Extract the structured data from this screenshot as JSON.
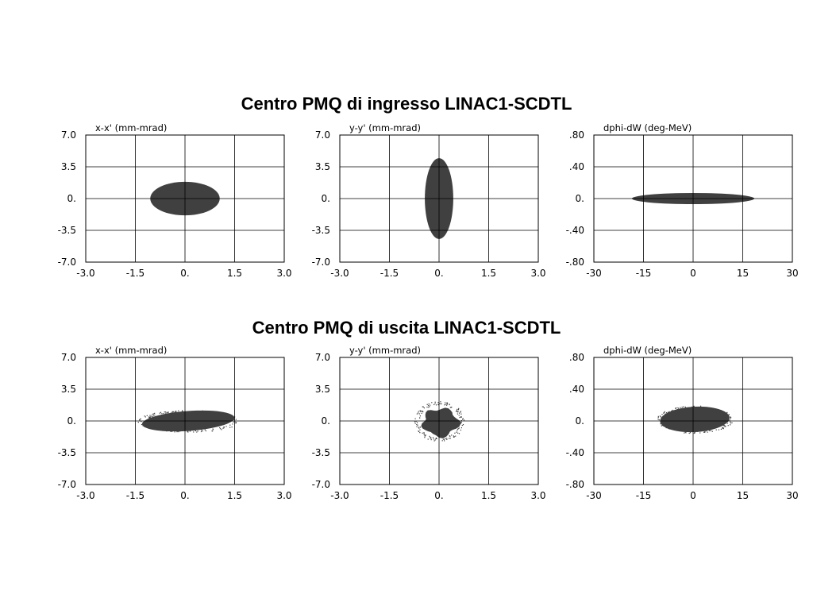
{
  "titles": {
    "top": "Centro PMQ di ingresso LINAC1-SCDTL",
    "bottom": "Centro PMQ di uscita LINAC1-SCDTL"
  },
  "colors": {
    "distribution": "#404040",
    "grid": "#000000",
    "background": "#ffffff"
  },
  "chart_data": [
    {
      "type": "scatter",
      "row": "top",
      "col": 0,
      "ylabel": "x-x' (mm-mrad)",
      "xlim": [
        -3.0,
        3.0
      ],
      "ylim": [
        -7.0,
        7.0
      ],
      "xticks": [
        -3.0,
        -1.5,
        0.0,
        1.5,
        3.0
      ],
      "xtick_labels": [
        "-3.0",
        "-1.5",
        "0.",
        "1.5",
        "3.0"
      ],
      "yticks": [
        7.0,
        3.5,
        0.0,
        -3.5,
        -7.0
      ],
      "ytick_labels": [
        "7.0",
        "3.5",
        "0.",
        "-3.5",
        "-7.0"
      ],
      "grid": true,
      "distribution": {
        "shape": "ellipse",
        "center": [
          0.0,
          0.0
        ],
        "x_half_width": 1.05,
        "y_half_height": 1.85,
        "rotation_deg": 0
      }
    },
    {
      "type": "scatter",
      "row": "top",
      "col": 1,
      "ylabel": "y-y' (mm-mrad)",
      "xlim": [
        -3.0,
        3.0
      ],
      "ylim": [
        -7.0,
        7.0
      ],
      "xticks": [
        -3.0,
        -1.5,
        0.0,
        1.5,
        3.0
      ],
      "xtick_labels": [
        "-3.0",
        "-1.5",
        "0.",
        "1.5",
        "3.0"
      ],
      "yticks": [
        7.0,
        3.5,
        0.0,
        -3.5,
        -7.0
      ],
      "ytick_labels": [
        "7.0",
        "3.5",
        "0.",
        "-3.5",
        "-7.0"
      ],
      "grid": true,
      "distribution": {
        "shape": "ellipse",
        "center": [
          0.0,
          0.0
        ],
        "x_half_width": 0.43,
        "y_half_height": 4.45,
        "rotation_deg": 0
      }
    },
    {
      "type": "scatter",
      "row": "top",
      "col": 2,
      "ylabel": "dphi-dW (deg-MeV)",
      "xlim": [
        -30,
        30
      ],
      "ylim": [
        -0.8,
        0.8
      ],
      "xticks": [
        -30,
        -15,
        0,
        15,
        30
      ],
      "xtick_labels": [
        "-30",
        "-15",
        "0",
        "15",
        "30"
      ],
      "yticks": [
        0.8,
        0.4,
        0.0,
        -0.4,
        -0.8
      ],
      "ytick_labels": [
        ".80",
        ".40",
        "0.",
        "-.40",
        "-.80"
      ],
      "grid": true,
      "distribution": {
        "shape": "ellipse",
        "center": [
          0.0,
          0.0
        ],
        "x_half_width": 18.5,
        "y_half_height": 0.07,
        "rotation_deg": 0
      }
    },
    {
      "type": "scatter",
      "row": "bottom",
      "col": 0,
      "ylabel": "x-x' (mm-mrad)",
      "xlim": [
        -3.0,
        3.0
      ],
      "ylim": [
        -7.0,
        7.0
      ],
      "xticks": [
        -3.0,
        -1.5,
        0.0,
        1.5,
        3.0
      ],
      "xtick_labels": [
        "-3.0",
        "-1.5",
        "0.",
        "1.5",
        "3.0"
      ],
      "yticks": [
        7.0,
        3.5,
        0.0,
        -3.5,
        -7.0
      ],
      "ytick_labels": [
        "7.0",
        "3.5",
        "0.",
        "-3.5",
        "-7.0"
      ],
      "grid": true,
      "distribution": {
        "shape": "ellipse",
        "center": [
          0.1,
          0.0
        ],
        "x_half_width": 1.4,
        "y_half_height": 1.1,
        "rotation_deg": -4,
        "halo": true
      }
    },
    {
      "type": "scatter",
      "row": "bottom",
      "col": 1,
      "ylabel": "y-y' (mm-mrad)",
      "xlim": [
        -3.0,
        3.0
      ],
      "ylim": [
        -7.0,
        7.0
      ],
      "xticks": [
        -3.0,
        -1.5,
        0.0,
        1.5,
        3.0
      ],
      "xtick_labels": [
        "-3.0",
        "-1.5",
        "0.",
        "1.5",
        "3.0"
      ],
      "yticks": [
        7.0,
        3.5,
        0.0,
        -3.5,
        -7.0
      ],
      "ytick_labels": [
        "7.0",
        "3.5",
        "0.",
        "-3.5",
        "-7.0"
      ],
      "grid": true,
      "distribution": {
        "shape": "blob",
        "center": [
          0.0,
          0.0
        ],
        "x_half_width": 0.68,
        "y_half_height": 2.7,
        "rotation_deg": 0,
        "halo": true
      }
    },
    {
      "type": "scatter",
      "row": "bottom",
      "col": 2,
      "ylabel": "dphi-dW (deg-MeV)",
      "xlim": [
        -30,
        30
      ],
      "ylim": [
        -0.8,
        0.8
      ],
      "xticks": [
        -30,
        -15,
        0,
        15,
        30
      ],
      "xtick_labels": [
        "-30",
        "-15",
        "0",
        "15",
        "30"
      ],
      "yticks": [
        0.8,
        0.4,
        0.0,
        -0.4,
        -0.8
      ],
      "ytick_labels": [
        ".80",
        ".40",
        "0.",
        "-.40",
        "-.80"
      ],
      "grid": true,
      "distribution": {
        "shape": "ellipse",
        "center": [
          0.5,
          0.02
        ],
        "x_half_width": 10.5,
        "y_half_height": 0.16,
        "rotation_deg": -3,
        "halo": true
      }
    }
  ]
}
